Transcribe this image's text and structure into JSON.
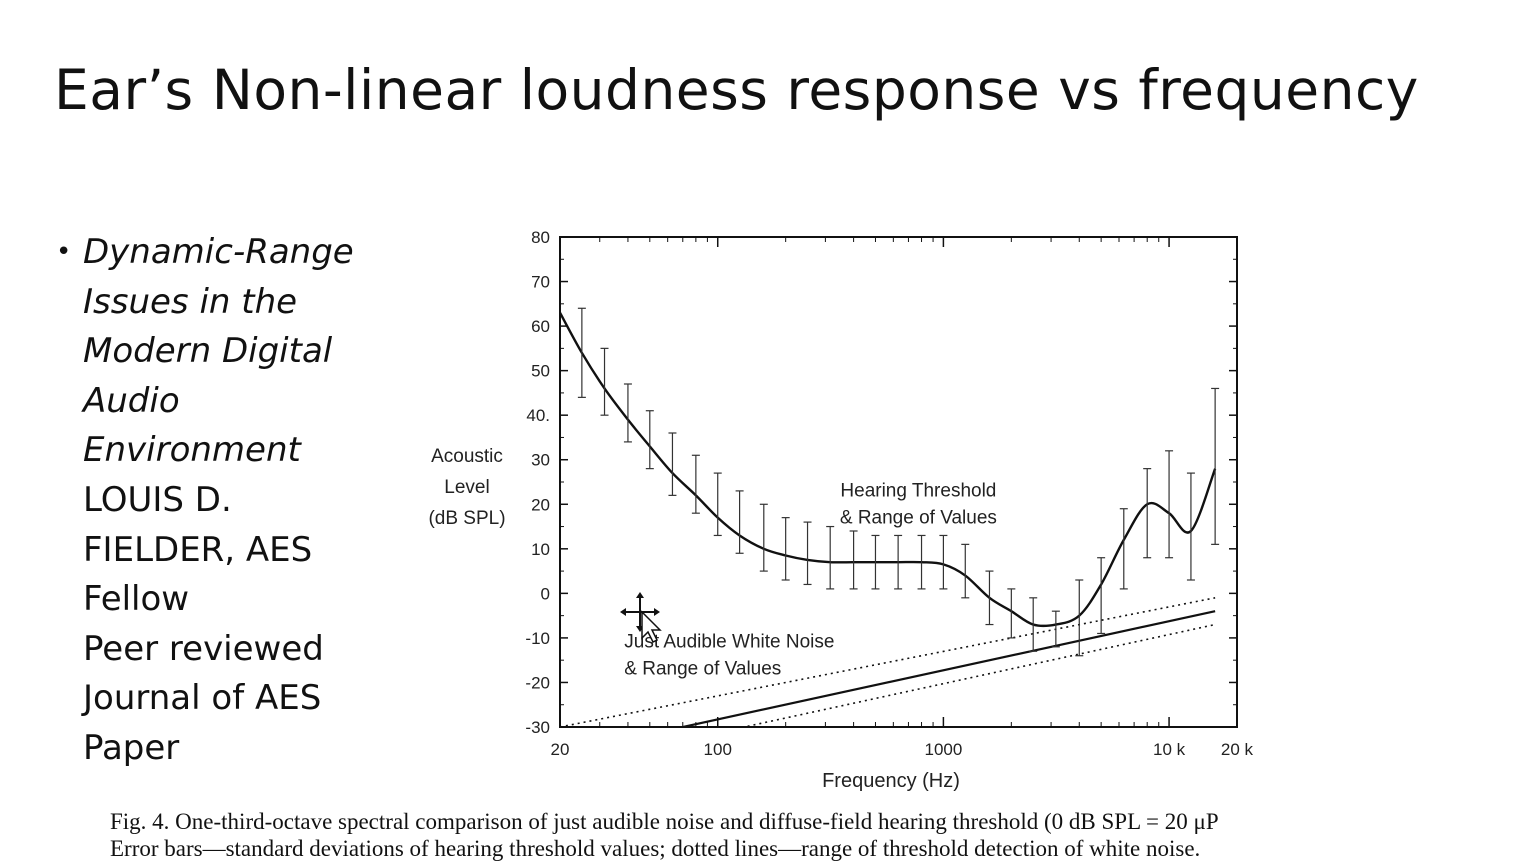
{
  "slide": {
    "title": "Ear’s Non-linear loudness response vs frequency",
    "bullet": {
      "italic_lines": [
        "Dynamic-Range",
        "Issues in the",
        "Modern Digital",
        "Audio",
        "Environment"
      ],
      "lines": [
        "LOUIS D.",
        "FIELDER, AES",
        "Fellow",
        "Peer reviewed",
        "Journal of AES",
        "Paper"
      ]
    },
    "caption": {
      "line1": "Fig. 4. One-third-octave spectral comparison of just audible noise and diffuse-field hearing threshold (0 dB SPL = 20 μP",
      "line2": "Error bars—standard deviations of hearing threshold values; dotted lines—range of threshold detection of white noise."
    }
  },
  "chart_data": {
    "type": "line",
    "xlabel": "Frequency (Hz)",
    "ylabel": [
      "Acoustic",
      "Level",
      "(dB SPL)"
    ],
    "x_scale": "log",
    "xlim": [
      20,
      20000
    ],
    "ylim": [
      -30,
      80
    ],
    "x_ticks": [
      {
        "value": 20,
        "label": "20"
      },
      {
        "value": 100,
        "label": "100"
      },
      {
        "value": 1000,
        "label": "1000"
      },
      {
        "value": 10000,
        "label": "10 k"
      },
      {
        "value": 20000,
        "label": "20 k"
      }
    ],
    "y_ticks": [
      {
        "value": 80,
        "label": "80"
      },
      {
        "value": 70,
        "label": "70"
      },
      {
        "value": 60,
        "label": "60"
      },
      {
        "value": 50,
        "label": "50"
      },
      {
        "value": 40,
        "label": "40."
      },
      {
        "value": 30,
        "label": "30"
      },
      {
        "value": 20,
        "label": "20"
      },
      {
        "value": 10,
        "label": "10"
      },
      {
        "value": 0,
        "label": "0"
      },
      {
        "value": -10,
        "label": "-10"
      },
      {
        "value": -20,
        "label": "-20"
      },
      {
        "value": -30,
        "label": "-30"
      }
    ],
    "grid": false,
    "annotations": [
      {
        "lines": [
          "Hearing Threshold",
          "& Range of Values"
        ],
        "x": 1000,
        "y": 20
      },
      {
        "lines": [
          "Just Audible White Noise",
          "& Range of Values"
        ],
        "x": 37,
        "y": -14
      }
    ],
    "series": [
      {
        "role": "hearing-threshold",
        "style": "solid",
        "x": [
          20,
          25,
          31.5,
          40,
          50,
          63,
          80,
          100,
          125,
          160,
          200,
          250,
          315,
          400,
          500,
          630,
          800,
          1000,
          1250,
          1600,
          2000,
          2500,
          3150,
          4000,
          5000,
          6300,
          8000,
          10000,
          12500,
          16000
        ],
        "y": [
          63,
          54,
          46,
          39,
          33,
          27,
          22,
          17,
          13,
          10,
          8.5,
          7.5,
          7,
          7,
          7,
          7,
          7,
          6.5,
          4,
          -1,
          -4,
          -7,
          -7,
          -5,
          2,
          12,
          20,
          18,
          14,
          28
        ]
      },
      {
        "role": "white-noise-threshold",
        "style": "solid",
        "x": [
          20,
          16000
        ],
        "y": [
          -36,
          -4
        ]
      },
      {
        "role": "white-noise-upper-range",
        "style": "dotted",
        "x": [
          20,
          16000
        ],
        "y": [
          -30,
          -1
        ]
      },
      {
        "role": "white-noise-lower-range",
        "style": "dotted",
        "x": [
          20,
          16000
        ],
        "y": [
          -39,
          -7
        ]
      }
    ],
    "error_bars": {
      "x": [
        25,
        31.5,
        40,
        50,
        63,
        80,
        100,
        125,
        160,
        200,
        250,
        315,
        400,
        500,
        630,
        800,
        1000,
        1250,
        1600,
        2000,
        2500,
        3150,
        4000,
        5000,
        6300,
        8000,
        10000,
        12500,
        16000
      ],
      "low": [
        44,
        40,
        34,
        28,
        22,
        18,
        13,
        9,
        5,
        3,
        2,
        1,
        1,
        1,
        1,
        1,
        1,
        -1,
        -7,
        -10,
        -13,
        -12,
        -14,
        -9,
        1,
        8,
        8,
        3,
        11
      ],
      "high": [
        64,
        55,
        47,
        41,
        36,
        31,
        27,
        23,
        20,
        17,
        16,
        15,
        14,
        13,
        13,
        13,
        13,
        11,
        5,
        1,
        -1,
        -4,
        3,
        8,
        19,
        28,
        32,
        27,
        46
      ]
    }
  }
}
